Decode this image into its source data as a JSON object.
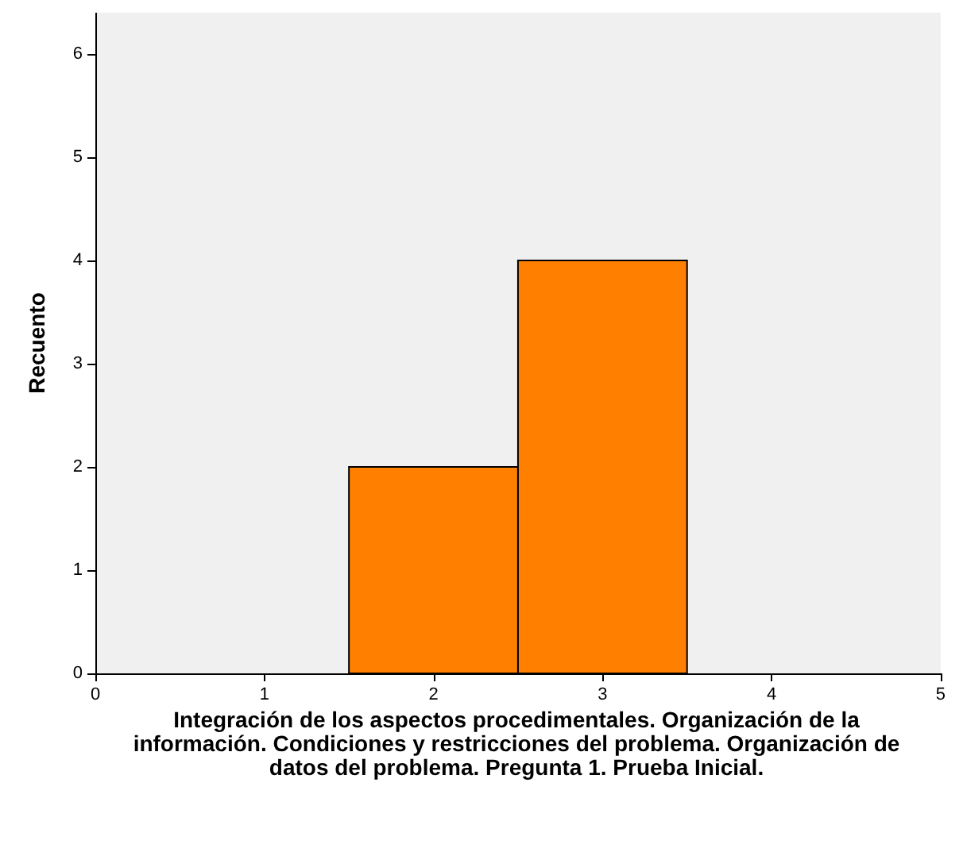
{
  "chart_data": {
    "type": "histogram",
    "xlabel": "Integración de los aspectos procedimentales. Organización de la información. Condiciones y restricciones del problema. Organización de datos del problema. Pregunta 1. Prueba Inicial.",
    "ylabel": "Recuento",
    "bins": [
      1.5,
      2.5,
      3.5
    ],
    "values": [
      2,
      4
    ],
    "color": "#ff8000",
    "xlim": [
      0,
      5
    ],
    "xticks": [
      0,
      1,
      2,
      3,
      4,
      5
    ],
    "ylim": [
      0,
      6.4
    ],
    "yticks": [
      0,
      1,
      2,
      3,
      4,
      5,
      6
    ],
    "grid": false
  }
}
